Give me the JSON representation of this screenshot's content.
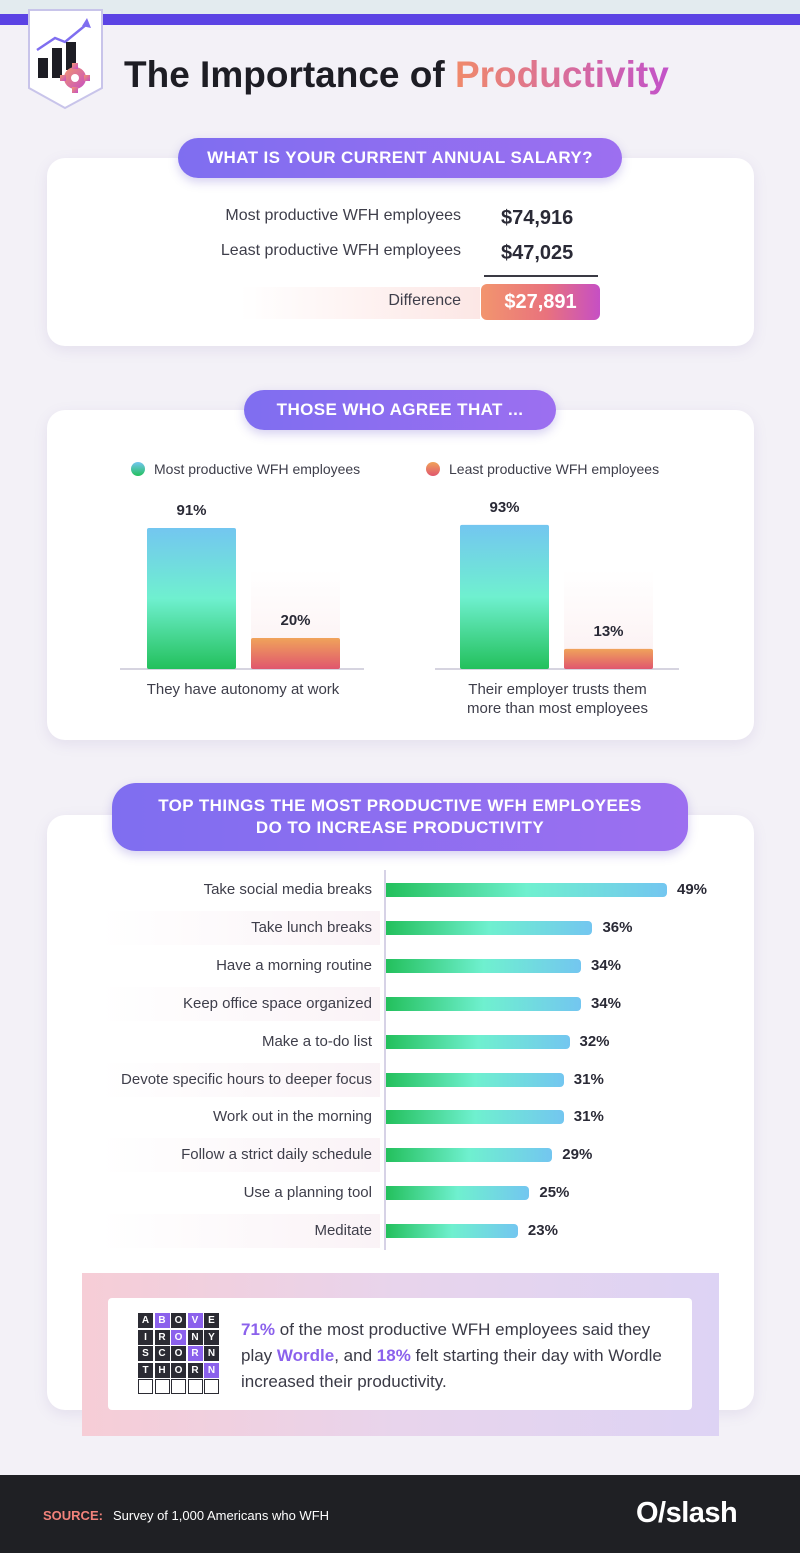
{
  "header": {
    "title_part1": "The Importance of ",
    "title_part2": "Productivity",
    "badge_icon": "bar-chart-gear-icon"
  },
  "colors": {
    "accent_purple": "#7f6ef0",
    "accent_orange": "#f08a6a",
    "accent_magenta": "#c252c9",
    "most_productive_gradient": [
      "#23c05c",
      "#6ff0cf",
      "#73c6f0"
    ],
    "least_productive_gradient": [
      "#f0a35a",
      "#e0566e"
    ],
    "footer_bg": "#1f2024"
  },
  "salary": {
    "heading": "WHAT IS YOUR CURRENT ANNUAL SALARY?",
    "rows": [
      {
        "label": "Most productive WFH employees",
        "value": "$74,916"
      },
      {
        "label": "Least productive WFH employees",
        "value": "$47,025"
      }
    ],
    "difference_label": "Difference",
    "difference_value": "$27,891"
  },
  "agree": {
    "heading": "THOSE WHO AGREE THAT ...",
    "legend": [
      "Most productive WFH employees",
      "Least productive WFH employees"
    ],
    "captions": [
      "They have autonomy at work",
      "Their employer trusts them",
      "more than most employees"
    ]
  },
  "top_things": {
    "heading_line1": "TOP THINGS THE MOST PRODUCTIVE WFH EMPLOYEES",
    "heading_line2": "DO TO INCREASE PRODUCTIVITY"
  },
  "wordle": {
    "grid_rows": [
      "ABOVE",
      "IRONY",
      "SCORN",
      "THORN",
      ""
    ],
    "pct1": "71%",
    "text1": " of the most productive WFH employees said they play ",
    "word": "Wordle",
    "text2": ", and ",
    "pct2": "18%",
    "text3": " felt starting their day with Wordle increased their productivity."
  },
  "footer": {
    "source_label": "SOURCE:",
    "source_text": "Survey of 1,000 Americans who WFH",
    "brand": "O/slash"
  },
  "chart_data": [
    {
      "type": "bar",
      "categories": [
        "They have autonomy at work"
      ],
      "series": [
        {
          "name": "Most productive WFH employees",
          "values": [
            91
          ]
        },
        {
          "name": "Least productive WFH employees",
          "values": [
            20
          ]
        }
      ],
      "value_labels": [
        "91%",
        "20%"
      ],
      "ylim": [
        0,
        100
      ]
    },
    {
      "type": "bar",
      "categories": [
        "Their employer trusts them more than most employees"
      ],
      "series": [
        {
          "name": "Most productive WFH employees",
          "values": [
            93
          ]
        },
        {
          "name": "Least productive WFH employees",
          "values": [
            13
          ]
        }
      ],
      "value_labels": [
        "93%",
        "13%"
      ],
      "ylim": [
        0,
        100
      ]
    },
    {
      "type": "bar",
      "orientation": "horizontal",
      "categories": [
        "Take social media breaks",
        "Take lunch breaks",
        "Have a morning routine",
        "Keep office space organized",
        "Make a to-do list",
        "Devote specific hours to deeper focus",
        "Work out in the morning",
        "Follow a strict daily schedule",
        "Use a planning tool",
        "Meditate"
      ],
      "values": [
        49,
        36,
        34,
        34,
        32,
        31,
        31,
        29,
        25,
        23
      ],
      "value_labels": [
        "49%",
        "36%",
        "34%",
        "34%",
        "32%",
        "31%",
        "31%",
        "29%",
        "25%",
        "23%"
      ],
      "xlim": [
        0,
        49
      ]
    }
  ]
}
